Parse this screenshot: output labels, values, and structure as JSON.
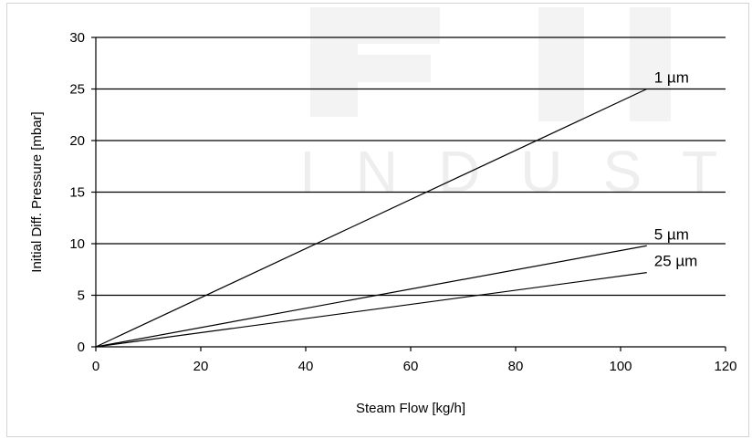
{
  "watermark": {
    "text": "INDUST",
    "color": "#f1f1f1"
  },
  "chart_data": {
    "type": "line",
    "title": "",
    "xlabel": "Steam Flow [kg/h]",
    "ylabel": "Initial Diff. Pressure [mbar]",
    "xlim": [
      0,
      120
    ],
    "ylim": [
      0,
      30
    ],
    "xticks": [
      0,
      20,
      40,
      60,
      80,
      100,
      120
    ],
    "yticks": [
      0,
      5,
      10,
      15,
      20,
      25,
      30
    ],
    "grid": "horizontal",
    "line_color": "#000000",
    "series": [
      {
        "name": "1 µm",
        "x": [
          0,
          105
        ],
        "y": [
          0,
          25
        ]
      },
      {
        "name": "5 µm",
        "x": [
          0,
          105
        ],
        "y": [
          0,
          9.8
        ]
      },
      {
        "name": "25 µm",
        "x": [
          0,
          105
        ],
        "y": [
          0,
          7.2
        ]
      }
    ]
  }
}
